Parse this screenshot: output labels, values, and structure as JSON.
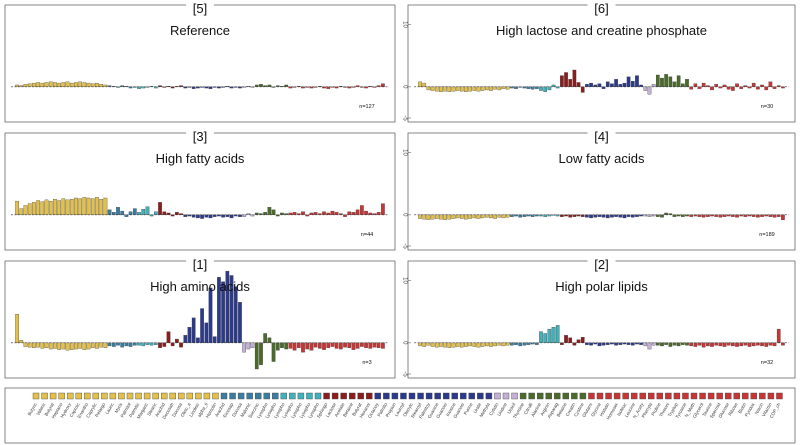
{
  "legend": {
    "names": [
      "Butyric",
      "Valeric",
      "Butyrat",
      "Heptano",
      "Hydroxy",
      "Caproic",
      "Enantho",
      "Caprylic",
      "Pelargo",
      "Lauric",
      "Myris",
      "Palmitol",
      "Palmitic",
      "Margaric",
      "Stearic",
      "Arachid",
      "Docosah",
      "Docosa",
      "Oleic_a",
      "Linoleic",
      "alpha_li",
      "Homolin",
      "Arachid",
      "Eicosap",
      "Docosa",
      "Malonic",
      "Succinic",
      "Lysopho",
      "Lysopho",
      "Lysopho",
      "Lysopho",
      "Lysopho",
      "Lysopho",
      "Lysopho",
      "Sphingo",
      "Lactose",
      "Acetate",
      "Betaine",
      "Butyrat",
      "Hexanoi",
      "Octanoy",
      "Palmito",
      "Propion",
      "Lauroyl",
      "Oleoylc",
      "Stearoyl",
      "Palmitoy",
      "Guanine",
      "Guanosi",
      "Inosine",
      "Guanosi",
      "Purine",
      "Urate",
      "Methyla",
      "Cytidin",
      "Uridine",
      "Uracil",
      "Thymine",
      "Citrulli",
      "Alanine",
      "Arginin",
      "Asparag",
      "Betaine",
      "Creatin",
      "Cystine",
      "Glutami",
      "Glycine",
      "Histidin",
      "Homoser",
      "Isoleuc",
      "Leucine",
      "N_Acety",
      "Phenyla",
      "Proline",
      "Threoni",
      "Tryptop",
      "Tyrosine",
      "N_Meth",
      "Glycerol",
      "Taurine",
      "Spermid",
      "Glucose",
      "Ribose",
      "Biotin",
      "Pyridox",
      "Niacin",
      "Vitamin",
      "CDP_ch"
    ],
    "colors": [
      "#e3c04a",
      "#e3c04a",
      "#e3c04a",
      "#e3c04a",
      "#e3c04a",
      "#e3c04a",
      "#e3c04a",
      "#e3c04a",
      "#e3c04a",
      "#e3c04a",
      "#e3c04a",
      "#e3c04a",
      "#e3c04a",
      "#e3c04a",
      "#e3c04a",
      "#e3c04a",
      "#e3c04a",
      "#e3c04a",
      "#e3c04a",
      "#e3c04a",
      "#e3c04a",
      "#e3c04a",
      "#3a7da3",
      "#3a7da3",
      "#3a7da3",
      "#3a7da3",
      "#3a7da3",
      "#3a7da3",
      "#3a7da3",
      "#40b2bc",
      "#40b2bc",
      "#40b2bc",
      "#40b2bc",
      "#40b2bc",
      "#8b1d1d",
      "#8b1d1d",
      "#8b1d1d",
      "#8b1d1d",
      "#8b1d1d",
      "#8b1d1d",
      "#2b3a8c",
      "#2b3a8c",
      "#2b3a8c",
      "#2b3a8c",
      "#2b3a8c",
      "#2b3a8c",
      "#2b3a8c",
      "#2b3a8c",
      "#2b3a8c",
      "#2b3a8c",
      "#2b3a8c",
      "#2b3a8c",
      "#2b3a8c",
      "#2b3a8c",
      "#c4b0d6",
      "#c4b0d6",
      "#c4b0d6",
      "#4b6b2b",
      "#4b6b2b",
      "#4b6b2b",
      "#4b6b2b",
      "#4b6b2b",
      "#4b6b2b",
      "#4b6b2b",
      "#4b6b2b",
      "#c93434",
      "#c93434",
      "#c93434",
      "#c93434",
      "#c93434",
      "#c93434",
      "#c93434",
      "#c93434",
      "#c93434",
      "#c93434",
      "#c93434",
      "#c93434",
      "#c93434",
      "#c93434",
      "#c93434",
      "#c93434",
      "#c93434",
      "#c93434",
      "#c93434",
      "#c93434",
      "#c93434",
      "#c93434",
      "#c93434"
    ]
  },
  "chart_data": [
    {
      "type": "bar",
      "label": "[5]",
      "title": "Reference",
      "n_label": "n=127",
      "ylim": [
        -5,
        12
      ],
      "zero_line": true,
      "values": [
        0.3,
        0.2,
        0.4,
        0.5,
        0.6,
        0.7,
        0.6,
        0.7,
        0.8,
        0.7,
        0.6,
        0.7,
        0.8,
        0.6,
        0.7,
        0.8,
        0.7,
        0.6,
        0.5,
        0.6,
        0.4,
        0.3,
        0.2,
        0.1,
        -0.1,
        0.2,
        0.1,
        -0.2,
        -0.1,
        -0.3,
        -0.2,
        -0.1,
        0.1,
        -0.2,
        0.2,
        -0.1,
        0.1,
        -0.2,
        0.1,
        0.2,
        -0.2,
        -0.1,
        -0.3,
        -0.2,
        -0.1,
        -0.2,
        -0.3,
        -0.1,
        -0.2,
        -0.1,
        0.1,
        -0.2,
        -0.1,
        -0.2,
        -0.1,
        0.1,
        -0.1,
        0.3,
        0.4,
        0.2,
        0.3,
        -0.1,
        0.2,
        0.1,
        0.3,
        -0.2,
        -0.1,
        0.1,
        -0.2,
        -0.1,
        -0.2,
        -0.1,
        0.1,
        -0.2,
        -0.3,
        -0.1,
        -0.2,
        0.1,
        -0.1,
        -0.2,
        -0.1,
        0.2,
        -0.1,
        -0.2,
        0.1,
        -0.1,
        0.2,
        0.5
      ]
    },
    {
      "type": "bar",
      "label": "[6]",
      "title": "High lactose and creatine phosphate",
      "n_label": "n=30",
      "ylim": [
        -5,
        12
      ],
      "yticks": [
        -5,
        0,
        10
      ],
      "zero_line": true,
      "values": [
        0.8,
        0.6,
        -0.5,
        -0.6,
        -0.7,
        -0.8,
        -0.7,
        -0.8,
        -0.7,
        -0.6,
        -0.7,
        -0.8,
        -0.7,
        -0.6,
        -0.7,
        -0.6,
        -0.5,
        -0.6,
        -0.4,
        -0.5,
        -0.3,
        -0.4,
        -0.2,
        -0.3,
        -0.1,
        -0.2,
        -0.3,
        -0.4,
        -0.3,
        -0.6,
        -0.8,
        -0.5,
        0.3,
        -0.2,
        1.8,
        2.3,
        1.2,
        2.7,
        0.7,
        -0.9,
        0.4,
        0.6,
        0.3,
        0.5,
        -0.3,
        0.8,
        0.5,
        1.2,
        0.4,
        0.6,
        1.6,
        0.9,
        1.8,
        0.3,
        -0.6,
        -1.2,
        0.4,
        1.9,
        1.4,
        2.0,
        1.6,
        0.8,
        1.8,
        0.5,
        1.2,
        -0.4,
        0.5,
        -0.3,
        0.6,
        0.2,
        -0.5,
        0.4,
        -0.2,
        0.3,
        -0.4,
        -0.6,
        0.5,
        -0.3,
        0.2,
        -0.2,
        0.6,
        -0.4,
        0.3,
        -0.5,
        0.8,
        -0.3,
        0.2,
        -0.2
      ]
    },
    {
      "type": "bar",
      "label": "[3]",
      "title": "High fatty acids",
      "n_label": "n=44",
      "ylim": [
        -5,
        12
      ],
      "zero_line": true,
      "values": [
        2.2,
        1.0,
        1.5,
        1.8,
        2.0,
        2.3,
        2.1,
        2.4,
        2.2,
        2.5,
        2.3,
        2.6,
        2.4,
        2.5,
        2.7,
        2.6,
        2.8,
        2.7,
        2.6,
        2.8,
        2.5,
        2.7,
        0.8,
        0.4,
        1.2,
        0.6,
        -0.3,
        0.5,
        1.0,
        0.4,
        0.9,
        1.3,
        -0.2,
        0.5,
        2.0,
        0.5,
        0.3,
        -0.2,
        0.4,
        0.2,
        -0.3,
        -0.2,
        -0.4,
        -0.5,
        -0.6,
        -0.4,
        -0.5,
        -0.3,
        -0.2,
        -0.4,
        -0.3,
        -0.5,
        -0.2,
        -0.3,
        -0.3,
        0.2,
        -0.2,
        0.3,
        0.2,
        0.4,
        1.2,
        0.8,
        -0.2,
        0.3,
        0.2,
        0.3,
        0.4,
        0.2,
        0.5,
        -0.2,
        0.3,
        0.4,
        0.2,
        0.5,
        0.3,
        0.6,
        0.4,
        0.2,
        -0.3,
        0.5,
        0.4,
        0.8,
        1.5,
        0.6,
        0.3,
        0.2,
        0.4,
        1.8
      ]
    },
    {
      "type": "bar",
      "label": "[4]",
      "title": "Low fatty acids",
      "n_label": "n=189",
      "ylim": [
        -5,
        12
      ],
      "yticks": [
        -5,
        0,
        10
      ],
      "zero_line": true,
      "values": [
        -0.6,
        -0.7,
        -0.8,
        -0.7,
        -0.6,
        -0.7,
        -0.8,
        -0.7,
        -0.6,
        -0.5,
        -0.6,
        -0.7,
        -0.6,
        -0.5,
        -0.6,
        -0.5,
        -0.4,
        -0.5,
        -0.6,
        -0.4,
        -0.5,
        -0.4,
        -0.3,
        -0.2,
        -0.4,
        -0.3,
        -0.2,
        -0.3,
        -0.2,
        -0.2,
        -0.3,
        -0.2,
        -0.1,
        -0.2,
        -0.3,
        -0.2,
        -0.4,
        -0.3,
        -0.2,
        -0.3,
        -0.4,
        -0.5,
        -0.4,
        -0.3,
        -0.4,
        -0.5,
        -0.4,
        -0.3,
        -0.4,
        -0.5,
        -0.3,
        -0.4,
        -0.3,
        -0.2,
        -0.2,
        -0.3,
        -0.2,
        -0.3,
        -0.4,
        0.3,
        0.2,
        -0.3,
        -0.2,
        -0.3,
        -0.2,
        -0.3,
        -0.2,
        -0.3,
        -0.4,
        -0.3,
        -0.2,
        -0.3,
        -0.4,
        -0.3,
        -0.2,
        -0.3,
        -0.4,
        -0.2,
        -0.3,
        -0.2,
        -0.3,
        -0.4,
        -0.3,
        -0.2,
        -0.3,
        -0.4,
        -0.3,
        -0.8
      ]
    },
    {
      "type": "bar",
      "label": "[1]",
      "title": "High amino acids",
      "n_label": "n=3",
      "ylim": [
        -5,
        12
      ],
      "zero_line": true,
      "values": [
        4.6,
        0.4,
        -0.6,
        -0.7,
        -0.8,
        -0.7,
        -0.9,
        -0.8,
        -1.0,
        -0.9,
        -1.1,
        -1.0,
        -1.2,
        -1.1,
        -1.0,
        -0.9,
        -1.1,
        -1.0,
        -0.8,
        -0.9,
        -0.7,
        -0.8,
        -0.5,
        -0.6,
        -0.4,
        -0.7,
        -0.5,
        -0.6,
        -0.4,
        -0.4,
        -0.5,
        -0.3,
        -0.4,
        -0.3,
        -0.8,
        -0.6,
        1.8,
        -0.5,
        0.6,
        -0.7,
        1.2,
        2.5,
        4.0,
        0.8,
        5.5,
        3.2,
        8.8,
        1.0,
        10.5,
        9.8,
        11.5,
        10.8,
        9.0,
        6.5,
        -1.5,
        -1.0,
        -0.8,
        -4.2,
        -3.5,
        1.5,
        0.8,
        -3.0,
        -1.2,
        -0.8,
        -1.0,
        -0.9,
        -1.2,
        -0.8,
        -1.5,
        -1.0,
        -1.2,
        -0.7,
        -0.9,
        -1.1,
        -0.8,
        -0.6,
        -0.9,
        -1.0,
        -0.7,
        -0.8,
        -1.1,
        -0.9,
        -0.6,
        -0.8,
        -0.9,
        -0.7,
        -0.8,
        -0.9
      ]
    },
    {
      "type": "bar",
      "label": "[2]",
      "title": "High polar lipids",
      "n_label": "n=32",
      "ylim": [
        -5,
        12
      ],
      "yticks": [
        -5,
        0,
        10
      ],
      "zero_line": true,
      "values": [
        -0.5,
        -0.6,
        -0.4,
        -0.6,
        -0.7,
        -0.6,
        -0.7,
        -0.8,
        -0.7,
        -0.6,
        -0.7,
        -0.6,
        -0.5,
        -0.6,
        -0.7,
        -0.6,
        -0.5,
        -0.6,
        -0.5,
        -0.4,
        -0.5,
        -0.4,
        -0.4,
        -0.3,
        -0.5,
        -0.4,
        -0.3,
        -0.2,
        -0.3,
        1.8,
        1.5,
        2.2,
        2.5,
        2.8,
        -0.3,
        1.2,
        0.8,
        -0.4,
        0.5,
        0.9,
        -0.3,
        -0.4,
        -0.2,
        -0.5,
        -0.4,
        -0.3,
        -0.2,
        -0.4,
        -0.3,
        -0.2,
        -0.3,
        -0.4,
        -0.2,
        -0.3,
        -0.5,
        -1.0,
        -0.4,
        -0.4,
        -0.5,
        -0.3,
        -0.6,
        -0.4,
        -0.5,
        -0.3,
        -0.4,
        -0.5,
        -0.6,
        -0.4,
        -0.7,
        -0.5,
        -0.6,
        -0.4,
        -0.5,
        -0.6,
        -0.4,
        -0.5,
        -0.6,
        -0.5,
        -0.4,
        -0.6,
        -0.5,
        -0.4,
        -0.5,
        -0.6,
        -0.4,
        -0.5,
        2.2,
        -0.4
      ]
    }
  ]
}
